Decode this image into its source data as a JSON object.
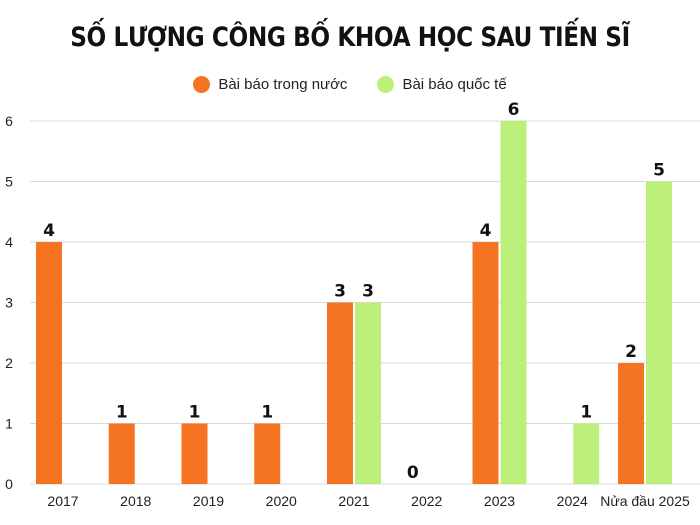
{
  "chart_data": {
    "type": "bar",
    "title": "SỐ LƯỢNG CÔNG BỐ KHOA HỌC SAU TIẾN SĨ",
    "categories": [
      "2017",
      "2018",
      "2019",
      "2020",
      "2021",
      "2022",
      "2023",
      "2024",
      "Nửa đầu 2025"
    ],
    "series": [
      {
        "name": "Bài báo trong nước",
        "color": "#f47421",
        "values": [
          4,
          1,
          1,
          1,
          3,
          0,
          4,
          null,
          2
        ]
      },
      {
        "name": "Bài báo quốc tế",
        "color": "#bcf07a",
        "values": [
          null,
          null,
          null,
          null,
          3,
          null,
          6,
          1,
          5
        ]
      }
    ],
    "y_ticks": [
      0,
      1,
      2,
      3,
      4,
      5,
      6
    ],
    "ylim": [
      0,
      6
    ],
    "grid": true,
    "legend_position": "top-center"
  }
}
